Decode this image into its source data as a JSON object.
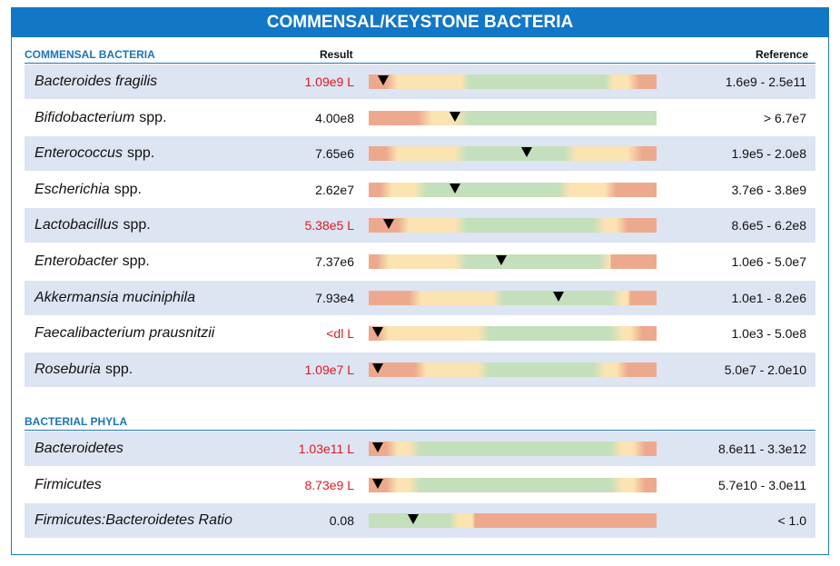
{
  "title": "COMMENSAL/KEYSTONE BACTERIA",
  "colors": {
    "header_blue": "#1277c6",
    "section_blue": "#1b74bb",
    "row_shade": "#dde4f2",
    "flag_red": "#e0191f",
    "bar_red": "#eda98e",
    "bar_yellow": "#fbe3b2",
    "bar_green": "#c4dfbb"
  },
  "commensal": {
    "heading": "COMMENSAL BACTERIA",
    "result_header": "Result",
    "reference_header": "Reference",
    "rows": [
      {
        "genus": "Bacteroides fragilis",
        "suffix": "",
        "result": "1.09e9 L",
        "flag": true,
        "reference": "1.6e9 - 2.5e11",
        "bar": {
          "stops": [
            [
              "r",
              0
            ],
            [
              "r",
              0.06
            ],
            [
              "y",
              0.1
            ],
            [
              "y",
              0.32
            ],
            [
              "g",
              0.35
            ],
            [
              "g",
              0.82
            ],
            [
              "y",
              0.85
            ],
            [
              "y",
              0.9
            ],
            [
              "r",
              0.94
            ],
            [
              "r",
              1
            ]
          ],
          "marker": 0.05
        }
      },
      {
        "genus": "Bifidobacterium",
        "suffix": "spp.",
        "result": "4.00e8",
        "flag": false,
        "reference": "> 6.7e7",
        "bar": {
          "stops": [
            [
              "r",
              0
            ],
            [
              "r",
              0.17
            ],
            [
              "y",
              0.22
            ],
            [
              "y",
              0.3
            ],
            [
              "g",
              0.35
            ],
            [
              "g",
              1
            ]
          ],
          "marker": 0.3
        }
      },
      {
        "genus": "Enterococcus",
        "suffix": "spp.",
        "result": "7.65e6",
        "flag": false,
        "reference": "1.9e5 - 2.0e8",
        "bar": {
          "stops": [
            [
              "r",
              0
            ],
            [
              "r",
              0.06
            ],
            [
              "y",
              0.1
            ],
            [
              "y",
              0.3
            ],
            [
              "g",
              0.34
            ],
            [
              "g",
              0.68
            ],
            [
              "y",
              0.72
            ],
            [
              "y",
              0.9
            ],
            [
              "r",
              0.95
            ],
            [
              "r",
              1
            ]
          ],
          "marker": 0.55
        }
      },
      {
        "genus": "Escherichia",
        "suffix": "spp.",
        "result": "2.62e7",
        "flag": false,
        "reference": "3.7e6 - 3.8e9",
        "bar": {
          "stops": [
            [
              "r",
              0
            ],
            [
              "r",
              0.04
            ],
            [
              "y",
              0.08
            ],
            [
              "y",
              0.16
            ],
            [
              "g",
              0.2
            ],
            [
              "g",
              0.66
            ],
            [
              "y",
              0.7
            ],
            [
              "y",
              0.82
            ],
            [
              "r",
              0.86
            ],
            [
              "r",
              1
            ]
          ],
          "marker": 0.3
        }
      },
      {
        "genus": "Lactobacillus",
        "suffix": "spp.",
        "result": "5.38e5 L",
        "flag": true,
        "reference": "8.6e5 - 6.2e8",
        "bar": {
          "stops": [
            [
              "r",
              0
            ],
            [
              "r",
              0.1
            ],
            [
              "y",
              0.14
            ],
            [
              "y",
              0.3
            ],
            [
              "g",
              0.34
            ],
            [
              "g",
              0.78
            ],
            [
              "y",
              0.82
            ],
            [
              "y",
              0.86
            ],
            [
              "r",
              0.9
            ],
            [
              "r",
              1
            ]
          ],
          "marker": 0.07
        }
      },
      {
        "genus": "Enterobacter",
        "suffix": "spp.",
        "result": "7.37e6",
        "flag": false,
        "reference": "1.0e6 - 5.0e7",
        "bar": {
          "stops": [
            [
              "r",
              0
            ],
            [
              "r",
              0.03
            ],
            [
              "y",
              0.07
            ],
            [
              "y",
              0.3
            ],
            [
              "g",
              0.34
            ],
            [
              "g",
              0.8
            ],
            [
              "y",
              0.84
            ],
            [
              "y",
              0.84
            ],
            [
              "r",
              0.84
            ],
            [
              "r",
              1
            ]
          ],
          "marker": 0.46
        }
      },
      {
        "genus": "Akkermansia muciniphila",
        "suffix": "",
        "result": "7.93e4",
        "flag": false,
        "reference": "1.0e1 - 8.2e6",
        "bar": {
          "stops": [
            [
              "r",
              0
            ],
            [
              "r",
              0.14
            ],
            [
              "y",
              0.18
            ],
            [
              "y",
              0.43
            ],
            [
              "g",
              0.47
            ],
            [
              "g",
              0.84
            ],
            [
              "y",
              0.88
            ],
            [
              "y",
              0.9
            ],
            [
              "r",
              0.91
            ],
            [
              "r",
              1
            ]
          ],
          "marker": 0.66
        }
      },
      {
        "genus": "Faecalibacterium prausnitzii",
        "suffix": "",
        "result": "<dl L",
        "flag": true,
        "reference": "1.0e3 - 5.0e8",
        "bar": {
          "stops": [
            [
              "r",
              0
            ],
            [
              "r",
              0.03
            ],
            [
              "y",
              0.07
            ],
            [
              "y",
              0.38
            ],
            [
              "g",
              0.42
            ],
            [
              "g",
              0.84
            ],
            [
              "y",
              0.88
            ],
            [
              "y",
              0.91
            ],
            [
              "r",
              0.95
            ],
            [
              "r",
              1
            ]
          ],
          "marker": 0.03
        }
      },
      {
        "genus": "Roseburia",
        "suffix": "spp.",
        "result": "1.09e7 L",
        "flag": true,
        "reference": "5.0e7 - 2.0e10",
        "bar": {
          "stops": [
            [
              "r",
              0
            ],
            [
              "r",
              0.16
            ],
            [
              "y",
              0.2
            ],
            [
              "y",
              0.38
            ],
            [
              "g",
              0.42
            ],
            [
              "g",
              0.78
            ],
            [
              "y",
              0.82
            ],
            [
              "y",
              0.86
            ],
            [
              "r",
              0.9
            ],
            [
              "r",
              1
            ]
          ],
          "marker": 0.03
        }
      }
    ]
  },
  "phyla": {
    "heading": "BACTERIAL PHYLA",
    "rows": [
      {
        "genus": "Bacteroidetes",
        "suffix": "",
        "result": "1.03e11 L",
        "flag": true,
        "reference": "8.6e11 - 3.3e12",
        "bar": {
          "stops": [
            [
              "r",
              0
            ],
            [
              "r",
              0.06
            ],
            [
              "y",
              0.1
            ],
            [
              "y",
              0.14
            ],
            [
              "g",
              0.18
            ],
            [
              "g",
              0.84
            ],
            [
              "y",
              0.88
            ],
            [
              "y",
              0.92
            ],
            [
              "r",
              0.96
            ],
            [
              "r",
              1
            ]
          ],
          "marker": 0.03
        }
      },
      {
        "genus": "Firmicutes",
        "suffix": "",
        "result": "8.73e9 L",
        "flag": true,
        "reference": "5.7e10 - 3.0e11",
        "bar": {
          "stops": [
            [
              "r",
              0
            ],
            [
              "r",
              0.06
            ],
            [
              "y",
              0.1
            ],
            [
              "y",
              0.14
            ],
            [
              "g",
              0.18
            ],
            [
              "g",
              0.84
            ],
            [
              "y",
              0.88
            ],
            [
              "y",
              0.92
            ],
            [
              "r",
              0.96
            ],
            [
              "r",
              1
            ]
          ],
          "marker": 0.03
        }
      },
      {
        "genus": "Firmicutes:Bacteroidetes Ratio",
        "suffix": "",
        "result": "0.08",
        "flag": false,
        "reference": "< 1.0",
        "bar": {
          "stops": [
            [
              "g",
              0
            ],
            [
              "g",
              0.28
            ],
            [
              "y",
              0.31
            ],
            [
              "y",
              0.36
            ],
            [
              "r",
              0.37
            ],
            [
              "r",
              1
            ]
          ],
          "marker": 0.155
        }
      }
    ]
  }
}
